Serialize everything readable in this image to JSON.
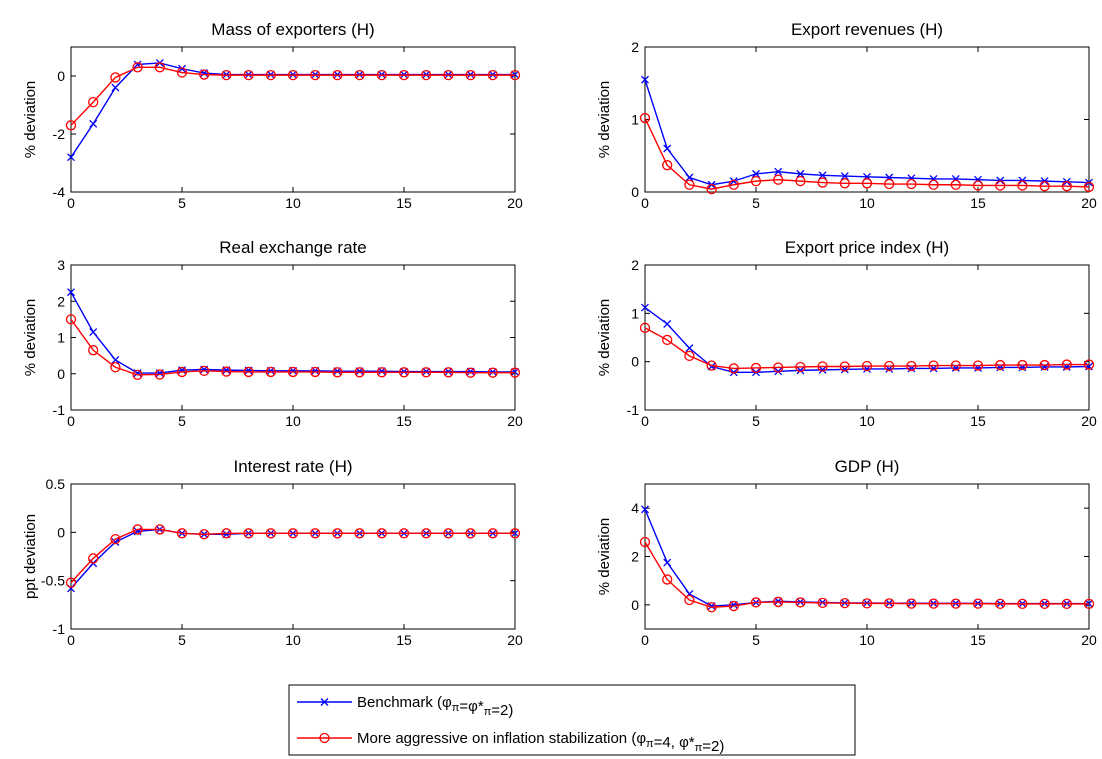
{
  "chart_data": [
    {
      "type": "line",
      "title": "Mass of exporters (H)",
      "ylabel": "% deviation",
      "xlim": [
        0,
        20
      ],
      "ylim": [
        -4,
        1
      ],
      "xticks": [
        0,
        5,
        10,
        15,
        20
      ],
      "yticks": [
        -4,
        -2,
        0
      ],
      "x": [
        0,
        1,
        2,
        3,
        4,
        5,
        6,
        7,
        8,
        9,
        10,
        11,
        12,
        13,
        14,
        15,
        16,
        17,
        18,
        19,
        20
      ],
      "series": [
        {
          "name": "Benchmark",
          "values": [
            -2.8,
            -1.65,
            -0.4,
            0.4,
            0.45,
            0.25,
            0.1,
            0.05,
            0.05,
            0.05,
            0.05,
            0.05,
            0.05,
            0.05,
            0.05,
            0.05,
            0.05,
            0.05,
            0.05,
            0.05,
            0.05
          ]
        },
        {
          "name": "More aggressive on inflation stabilization",
          "values": [
            -1.7,
            -0.9,
            -0.05,
            0.3,
            0.3,
            0.12,
            0.05,
            0.03,
            0.03,
            0.03,
            0.03,
            0.03,
            0.03,
            0.03,
            0.03,
            0.03,
            0.03,
            0.03,
            0.03,
            0.03,
            0.03
          ]
        }
      ]
    },
    {
      "type": "line",
      "title": "Export revenues (H)",
      "ylabel": "% deviation",
      "xlim": [
        0,
        20
      ],
      "ylim": [
        0,
        2
      ],
      "xticks": [
        0,
        5,
        10,
        15,
        20
      ],
      "yticks": [
        0,
        1,
        2
      ],
      "x": [
        0,
        1,
        2,
        3,
        4,
        5,
        6,
        7,
        8,
        9,
        10,
        11,
        12,
        13,
        14,
        15,
        16,
        17,
        18,
        19,
        20
      ],
      "series": [
        {
          "name": "Benchmark",
          "values": [
            1.55,
            0.6,
            0.2,
            0.1,
            0.15,
            0.25,
            0.28,
            0.25,
            0.23,
            0.22,
            0.21,
            0.2,
            0.19,
            0.18,
            0.18,
            0.17,
            0.16,
            0.16,
            0.15,
            0.14,
            0.13
          ]
        },
        {
          "name": "More aggressive on inflation stabilization",
          "values": [
            1.02,
            0.37,
            0.1,
            0.04,
            0.1,
            0.15,
            0.17,
            0.15,
            0.13,
            0.12,
            0.12,
            0.11,
            0.11,
            0.1,
            0.1,
            0.09,
            0.09,
            0.09,
            0.08,
            0.08,
            0.07
          ]
        }
      ]
    },
    {
      "type": "line",
      "title": "Real exchange rate",
      "ylabel": "% deviation",
      "xlim": [
        0,
        20
      ],
      "ylim": [
        -1,
        3
      ],
      "xticks": [
        0,
        5,
        10,
        15,
        20
      ],
      "yticks": [
        -1,
        0,
        1,
        2,
        3
      ],
      "x": [
        0,
        1,
        2,
        3,
        4,
        5,
        6,
        7,
        8,
        9,
        10,
        11,
        12,
        13,
        14,
        15,
        16,
        17,
        18,
        19,
        20
      ],
      "series": [
        {
          "name": "Benchmark",
          "values": [
            2.25,
            1.15,
            0.38,
            0.02,
            0.02,
            0.1,
            0.12,
            0.1,
            0.09,
            0.08,
            0.08,
            0.08,
            0.07,
            0.07,
            0.07,
            0.06,
            0.06,
            0.06,
            0.06,
            0.05,
            0.05
          ]
        },
        {
          "name": "More aggressive on inflation stabilization",
          "values": [
            1.5,
            0.65,
            0.18,
            -0.03,
            -0.02,
            0.05,
            0.08,
            0.06,
            0.05,
            0.05,
            0.05,
            0.05,
            0.04,
            0.04,
            0.04,
            0.04,
            0.04,
            0.04,
            0.03,
            0.03,
            0.03
          ]
        }
      ]
    },
    {
      "type": "line",
      "title": "Export price index (H)",
      "ylabel": "% deviation",
      "xlim": [
        0,
        20
      ],
      "ylim": [
        -1,
        2
      ],
      "xticks": [
        0,
        5,
        10,
        15,
        20
      ],
      "yticks": [
        -1,
        0,
        1,
        2
      ],
      "x": [
        0,
        1,
        2,
        3,
        4,
        5,
        6,
        7,
        8,
        9,
        10,
        11,
        12,
        13,
        14,
        15,
        16,
        17,
        18,
        19,
        20
      ],
      "series": [
        {
          "name": "Benchmark",
          "values": [
            1.12,
            0.78,
            0.28,
            -0.1,
            -0.22,
            -0.22,
            -0.2,
            -0.18,
            -0.17,
            -0.16,
            -0.15,
            -0.15,
            -0.14,
            -0.14,
            -0.13,
            -0.13,
            -0.12,
            -0.12,
            -0.11,
            -0.11,
            -0.1
          ]
        },
        {
          "name": "More aggressive on inflation stabilization",
          "values": [
            0.7,
            0.45,
            0.12,
            -0.08,
            -0.14,
            -0.13,
            -0.12,
            -0.11,
            -0.1,
            -0.1,
            -0.09,
            -0.09,
            -0.09,
            -0.08,
            -0.08,
            -0.08,
            -0.07,
            -0.07,
            -0.07,
            -0.06,
            -0.06
          ]
        }
      ]
    },
    {
      "type": "line",
      "title": "Interest rate (H)",
      "ylabel": "ppt deviation",
      "xlim": [
        0,
        20
      ],
      "ylim": [
        -1,
        0.5
      ],
      "xticks": [
        0,
        5,
        10,
        15,
        20
      ],
      "yticks": [
        -1,
        -0.5,
        0,
        0.5
      ],
      "ytick_labels": [
        "-1",
        "-0.5",
        "0",
        "0.5"
      ],
      "x": [
        0,
        1,
        2,
        3,
        4,
        5,
        6,
        7,
        8,
        9,
        10,
        11,
        12,
        13,
        14,
        15,
        16,
        17,
        18,
        19,
        20
      ],
      "series": [
        {
          "name": "Benchmark",
          "values": [
            -0.58,
            -0.32,
            -0.1,
            0.01,
            0.03,
            -0.01,
            -0.02,
            -0.02,
            -0.01,
            -0.01,
            -0.01,
            -0.01,
            -0.01,
            -0.01,
            -0.01,
            -0.01,
            -0.01,
            -0.01,
            -0.01,
            -0.01,
            -0.01
          ]
        },
        {
          "name": "More aggressive on inflation stabilization",
          "values": [
            -0.52,
            -0.27,
            -0.07,
            0.03,
            0.03,
            -0.01,
            -0.02,
            -0.01,
            -0.01,
            -0.01,
            -0.01,
            -0.01,
            -0.01,
            -0.01,
            -0.01,
            -0.01,
            -0.01,
            -0.01,
            -0.01,
            -0.01,
            -0.01
          ]
        }
      ]
    },
    {
      "type": "line",
      "title": "GDP (H)",
      "ylabel": "% deviation",
      "xlim": [
        0,
        20
      ],
      "ylim": [
        -1,
        5
      ],
      "xticks": [
        0,
        5,
        10,
        15,
        20
      ],
      "yticks": [
        0,
        2,
        4
      ],
      "x": [
        0,
        1,
        2,
        3,
        4,
        5,
        6,
        7,
        8,
        9,
        10,
        11,
        12,
        13,
        14,
        15,
        16,
        17,
        18,
        19,
        20
      ],
      "series": [
        {
          "name": "Benchmark",
          "values": [
            3.95,
            1.75,
            0.45,
            -0.05,
            0.0,
            0.1,
            0.15,
            0.12,
            0.1,
            0.08,
            0.08,
            0.07,
            0.07,
            0.06,
            0.06,
            0.06,
            0.05,
            0.05,
            0.05,
            0.05,
            0.05
          ]
        },
        {
          "name": "More aggressive on inflation stabilization",
          "values": [
            2.6,
            1.05,
            0.2,
            -0.1,
            -0.05,
            0.1,
            0.12,
            0.1,
            0.08,
            0.07,
            0.06,
            0.06,
            0.05,
            0.05,
            0.05,
            0.05,
            0.04,
            0.04,
            0.04,
            0.04,
            0.04
          ]
        }
      ]
    }
  ],
  "legend": {
    "placement": "bottom-center",
    "entries": [
      {
        "color": "#0000ff",
        "marker": "x",
        "text": "Benchmark (",
        "rest": "=2)"
      },
      {
        "color": "#ff0000",
        "marker": "o",
        "text": "More aggressive on inflation stabilization (",
        "rest": "=2)"
      }
    ]
  }
}
